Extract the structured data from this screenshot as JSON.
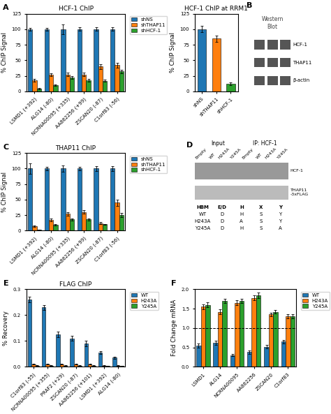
{
  "chart_data": [
    {
      "type": "bar",
      "title": "HCF-1 ChIP",
      "y_label": "% ChIP Signal",
      "ylim": [
        0,
        125
      ],
      "yticks": [
        0,
        25,
        50,
        75,
        100,
        125
      ],
      "categories": [
        "LSMD1 (+392)",
        "ALG14 (-80)",
        "NCRNA00095 (+335)",
        "AA862256 (+99)",
        "ZSCAN20 (-87)",
        "C1orf83 (-56)"
      ],
      "series": [
        {
          "name": "shNS",
          "values": [
            100,
            100,
            100,
            100,
            100,
            100
          ],
          "errors": [
            2,
            2,
            8,
            3,
            3,
            3
          ]
        },
        {
          "name": "shTHAP11",
          "values": [
            18,
            27,
            27,
            27,
            40,
            42
          ],
          "errors": [
            2,
            2,
            3,
            3,
            4,
            4
          ]
        },
        {
          "name": "shHCF-1",
          "values": [
            4,
            10,
            22,
            18,
            17,
            32
          ],
          "errors": [
            1,
            1,
            2,
            2,
            2,
            3
          ]
        }
      ],
      "annotations": {
        "panel": "A"
      }
    },
    {
      "type": "bar",
      "title": "HCF-1 ChIP at RRM1",
      "y_label": "% ChIP Signal",
      "ylim": [
        0,
        125
      ],
      "yticks": [
        0,
        25,
        50,
        75,
        100,
        125
      ],
      "categories": [
        "shNS",
        "shTHAP11",
        "shHCF-1"
      ],
      "values": [
        100,
        85,
        12
      ],
      "errors": [
        5,
        5,
        2
      ]
    },
    {
      "type": "blot",
      "annotations": {
        "panel": "B",
        "text": "Western\nBlot",
        "bands": [
          "HCF-1",
          "THAP11",
          "β-actin"
        ]
      }
    },
    {
      "type": "bar",
      "title": "THAP11 ChIP",
      "y_label": "% ChIP Signal",
      "ylim": [
        0,
        125
      ],
      "yticks": [
        0,
        25,
        50,
        75,
        100,
        125
      ],
      "categories": [
        "LSMD1 (+392)",
        "ALG14 (-80)",
        "NCRNA00095 (+335)",
        "AA862256 (+99)",
        "ZSCAN20 (-87)",
        "C1orf83 (-56)"
      ],
      "series": [
        {
          "name": "shNS",
          "values": [
            100,
            100,
            100,
            100,
            100,
            100
          ],
          "errors": [
            8,
            3,
            5,
            3,
            4,
            4
          ]
        },
        {
          "name": "shTHAP11",
          "values": [
            7,
            17,
            27,
            30,
            12,
            45
          ],
          "errors": [
            1,
            2,
            3,
            3,
            2,
            5
          ]
        },
        {
          "name": "shHCF-1",
          "values": [
            1,
            9,
            18,
            18,
            10,
            25
          ],
          "errors": [
            0.5,
            1,
            2,
            2,
            1,
            3
          ]
        }
      ],
      "annotations": {
        "panel": "C"
      }
    },
    {
      "type": "blot",
      "annotations": {
        "panel": "D",
        "headers": [
          "Input",
          "IP: HCF-1"
        ],
        "lanes": [
          "Empty",
          "WT",
          "H243A",
          "Y245A",
          "Empty",
          "WT",
          "H243A",
          "Y245A"
        ],
        "bands": [
          "HCF-1",
          "THAP11\n-3xFLAG"
        ],
        "table": [
          [
            "HBM",
            "E/D",
            "H",
            "X",
            "Y"
          ],
          [
            "WT",
            "D",
            "H",
            "S",
            "Y"
          ],
          [
            "H243A",
            "D",
            "A",
            "S",
            "Y"
          ],
          [
            "Y245A",
            "D",
            "H",
            "S",
            "A"
          ]
        ]
      }
    },
    {
      "type": "bar",
      "title": "FLAG ChIP",
      "y_label": "% Recovery",
      "ylim": [
        0.0,
        0.3
      ],
      "yticks": [
        0.0,
        0.1,
        0.2,
        0.3
      ],
      "categories": [
        "C1orf83 (-55)",
        "NCRNA00095 (+355)",
        "PRAF2 (+29)",
        "ZSCAN20 (-87)",
        "AA862256 (+101)",
        "LSMD1 (+392)",
        "ALG14 (-80)"
      ],
      "series": [
        {
          "name": "WT",
          "values": [
            0.26,
            0.23,
            0.125,
            0.11,
            0.09,
            0.055,
            0.035
          ],
          "errors": [
            0.01,
            0.01,
            0.01,
            0.01,
            0.01,
            0.005,
            0.005
          ]
        },
        {
          "name": "H243A",
          "values": [
            0.01,
            0.01,
            0.01,
            0.01,
            0.01,
            0.005,
            0.005
          ],
          "errors": [
            0.002,
            0.002,
            0.002,
            0.002,
            0.002,
            0.001,
            0.001
          ]
        },
        {
          "name": "Y245A",
          "values": [
            0.005,
            0.005,
            0.005,
            0.005,
            0.005,
            0.003,
            0.003
          ],
          "errors": [
            0.001,
            0.001,
            0.001,
            0.001,
            0.001,
            0.001,
            0.001
          ]
        }
      ],
      "annotations": {
        "panel": "E"
      }
    },
    {
      "type": "bar",
      "y_label": "Fold Change mRNA",
      "ylim": [
        0.0,
        2.0
      ],
      "yticks": [
        0.0,
        0.5,
        1.0,
        1.5,
        2.0
      ],
      "reference_line": 1.0,
      "categories": [
        "LSMD1",
        "ALG14",
        "NCRNA00095",
        "AA862256",
        "ZSCAN20",
        "C1orf83"
      ],
      "series": [
        {
          "name": "WT",
          "values": [
            0.55,
            0.62,
            0.3,
            0.38,
            0.52,
            0.65
          ],
          "errors": [
            0.05,
            0.05,
            0.03,
            0.04,
            0.04,
            0.05
          ]
        },
        {
          "name": "H243A",
          "values": [
            1.55,
            1.42,
            1.65,
            1.78,
            1.35,
            1.3
          ],
          "errors": [
            0.06,
            0.06,
            0.06,
            0.06,
            0.05,
            0.05
          ]
        },
        {
          "name": "Y245A",
          "values": [
            1.6,
            1.7,
            1.7,
            1.85,
            1.42,
            1.3
          ],
          "errors": [
            0.06,
            0.06,
            0.06,
            0.07,
            0.05,
            0.05
          ]
        }
      ],
      "annotations": {
        "panel": "F"
      }
    }
  ]
}
